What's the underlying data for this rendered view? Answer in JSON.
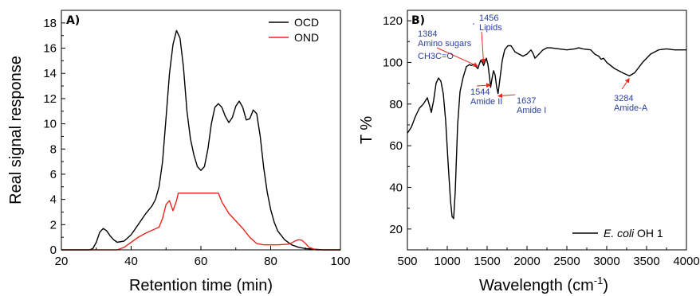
{
  "colors": {
    "ocd": "#000000",
    "ond": "#e8261c",
    "annotation": "#2a3f9e",
    "arrow": "#e8261c"
  },
  "chart_data": [
    {
      "type": "line",
      "panel_label": "A)",
      "xlabel": "Retention time (min)",
      "ylabel": "Real signal response",
      "xlim": [
        20,
        100
      ],
      "ylim": [
        0,
        19
      ],
      "xticks": [
        20,
        40,
        60,
        80,
        100
      ],
      "yticks": [
        0,
        2,
        4,
        6,
        8,
        10,
        12,
        14,
        16,
        18
      ],
      "grid": false,
      "legend_position": "top-right",
      "series": [
        {
          "name": "OCD",
          "color": "#000000",
          "points": [
            [
              20,
              0
            ],
            [
              28,
              0
            ],
            [
              29,
              0.1
            ],
            [
              30,
              0.6
            ],
            [
              31,
              1.4
            ],
            [
              32,
              1.7
            ],
            [
              33,
              1.5
            ],
            [
              34,
              1.1
            ],
            [
              35,
              0.8
            ],
            [
              36,
              0.6
            ],
            [
              38,
              0.7
            ],
            [
              40,
              1.2
            ],
            [
              42,
              2.0
            ],
            [
              44,
              2.8
            ],
            [
              46,
              3.5
            ],
            [
              47,
              4.0
            ],
            [
              48,
              5.0
            ],
            [
              49,
              7.0
            ],
            [
              50,
              10.5
            ],
            [
              51,
              14.0
            ],
            [
              52,
              16.3
            ],
            [
              53,
              17.4
            ],
            [
              54,
              16.8
            ],
            [
              55,
              14.5
            ],
            [
              56,
              11.0
            ],
            [
              57,
              8.8
            ],
            [
              58,
              7.5
            ],
            [
              59,
              6.6
            ],
            [
              60,
              6.3
            ],
            [
              61,
              6.6
            ],
            [
              62,
              8.0
            ],
            [
              63,
              10.0
            ],
            [
              64,
              11.3
            ],
            [
              65,
              11.6
            ],
            [
              66,
              11.3
            ],
            [
              67,
              10.6
            ],
            [
              68,
              10.1
            ],
            [
              69,
              10.5
            ],
            [
              70,
              11.4
            ],
            [
              71,
              11.8
            ],
            [
              72,
              11.3
            ],
            [
              73,
              10.3
            ],
            [
              74,
              10.4
            ],
            [
              75,
              11.1
            ],
            [
              76,
              10.8
            ],
            [
              77,
              9.0
            ],
            [
              78,
              6.5
            ],
            [
              79,
              4.6
            ],
            [
              80,
              3.2
            ],
            [
              81,
              2.2
            ],
            [
              82,
              1.5
            ],
            [
              84,
              0.8
            ],
            [
              86,
              0.4
            ],
            [
              88,
              0.2
            ],
            [
              90,
              0.1
            ],
            [
              95,
              0
            ],
            [
              100,
              0
            ]
          ]
        },
        {
          "name": "OND",
          "color": "#e8261c",
          "points": [
            [
              20,
              0
            ],
            [
              36,
              0
            ],
            [
              38,
              0.2
            ],
            [
              40,
              0.6
            ],
            [
              42,
              1.0
            ],
            [
              44,
              1.3
            ],
            [
              46,
              1.55
            ],
            [
              48,
              1.8
            ],
            [
              49,
              2.5
            ],
            [
              50,
              3.6
            ],
            [
              51,
              3.9
            ],
            [
              52,
              3.1
            ],
            [
              53,
              3.9
            ],
            [
              53.5,
              4.5
            ],
            [
              65,
              4.5
            ],
            [
              66,
              3.8
            ],
            [
              68,
              2.9
            ],
            [
              70,
              2.3
            ],
            [
              72,
              1.7
            ],
            [
              74,
              1.0
            ],
            [
              76,
              0.5
            ],
            [
              78,
              0.4
            ],
            [
              82,
              0.4
            ],
            [
              85,
              0.45
            ],
            [
              86,
              0.55
            ],
            [
              87,
              0.7
            ],
            [
              88,
              0.8
            ],
            [
              89,
              0.75
            ],
            [
              90,
              0.5
            ],
            [
              91,
              0.2
            ],
            [
              93,
              0
            ],
            [
              100,
              0
            ]
          ]
        }
      ]
    },
    {
      "type": "line",
      "panel_label": "B)",
      "xlabel": "Wavelength (cm",
      "xlabel_sup": "-1",
      "xlabel_end": ")",
      "ylabel": "T %",
      "xlim": [
        500,
        4000
      ],
      "ylim": [
        10,
        125
      ],
      "xticks": [
        500,
        1000,
        1500,
        2000,
        2500,
        3000,
        3500,
        4000
      ],
      "yticks": [
        20,
        40,
        60,
        80,
        100,
        120
      ],
      "grid": false,
      "legend_position": "bottom-right",
      "legend": {
        "italic": "E. coli",
        "rest": " OH 1"
      },
      "series": [
        {
          "name": "E. coli OH 1",
          "color": "#000000",
          "points": [
            [
              500,
              66
            ],
            [
              550,
              69
            ],
            [
              600,
              74
            ],
            [
              650,
              78
            ],
            [
              700,
              80
            ],
            [
              750,
              83
            ],
            [
              780,
              79
            ],
            [
              800,
              76
            ],
            [
              830,
              82
            ],
            [
              860,
              90
            ],
            [
              890,
              92.5
            ],
            [
              920,
              91
            ],
            [
              950,
              85
            ],
            [
              980,
              72
            ],
            [
              1010,
              52
            ],
            [
              1040,
              34
            ],
            [
              1060,
              26
            ],
            [
              1080,
              25
            ],
            [
              1100,
              38
            ],
            [
              1130,
              70
            ],
            [
              1160,
              86
            ],
            [
              1200,
              93
            ],
            [
              1240,
              98
            ],
            [
              1280,
              99
            ],
            [
              1300,
              98.5
            ],
            [
              1330,
              99
            ],
            [
              1360,
              98
            ],
            [
              1384,
              97
            ],
            [
              1400,
              99
            ],
            [
              1420,
              101
            ],
            [
              1440,
              100
            ],
            [
              1456,
              98.5
            ],
            [
              1470,
              100
            ],
            [
              1490,
              102
            ],
            [
              1510,
              99
            ],
            [
              1530,
              93
            ],
            [
              1544,
              88
            ],
            [
              1560,
              92
            ],
            [
              1580,
              96
            ],
            [
              1600,
              94
            ],
            [
              1620,
              88
            ],
            [
              1637,
              85
            ],
            [
              1660,
              92
            ],
            [
              1690,
              101
            ],
            [
              1720,
              106
            ],
            [
              1760,
              108
            ],
            [
              1800,
              108
            ],
            [
              1850,
              105
            ],
            [
              1900,
              104
            ],
            [
              1950,
              103
            ],
            [
              2000,
              104
            ],
            [
              2050,
              106
            ],
            [
              2080,
              104
            ],
            [
              2100,
              102
            ],
            [
              2150,
              104
            ],
            [
              2200,
              106
            ],
            [
              2250,
              107
            ],
            [
              2300,
              107
            ],
            [
              2400,
              106.5
            ],
            [
              2500,
              106
            ],
            [
              2600,
              106.5
            ],
            [
              2650,
              107
            ],
            [
              2700,
              106.5
            ],
            [
              2800,
              106
            ],
            [
              2850,
              104
            ],
            [
              2900,
              103
            ],
            [
              2930,
              101.5
            ],
            [
              2960,
              102
            ],
            [
              3000,
              100
            ],
            [
              3100,
              97
            ],
            [
              3200,
              95
            ],
            [
              3284,
              93.5
            ],
            [
              3350,
              95
            ],
            [
              3450,
              100
            ],
            [
              3550,
              104
            ],
            [
              3650,
              106
            ],
            [
              3750,
              106.5
            ],
            [
              3850,
              106
            ],
            [
              3950,
              106
            ],
            [
              4000,
              106
            ]
          ]
        }
      ],
      "annotations": [
        {
          "lines": [
            "1384",
            "Amino sugars"
          ],
          "x": 1384,
          "y": 97
        },
        {
          "lines": [
            "CH3C=O"
          ],
          "x": 1384,
          "y": 97
        },
        {
          "lines": [
            "1456",
            "Lipids"
          ],
          "x": 1456,
          "y": 98.5
        },
        {
          "lines": [
            "1544",
            "Amide II"
          ],
          "x": 1544,
          "y": 88
        },
        {
          "lines": [
            "1637",
            "Amide I"
          ],
          "x": 1637,
          "y": 85
        },
        {
          "lines": [
            "3284",
            "Amide-A"
          ],
          "x": 3284,
          "y": 93.5
        }
      ]
    }
  ]
}
